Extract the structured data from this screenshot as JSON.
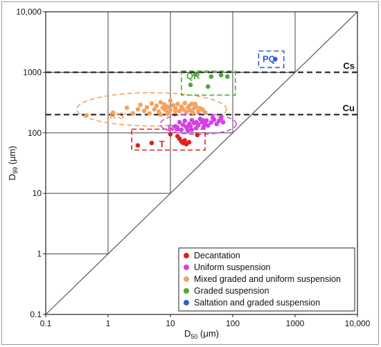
{
  "chart_data": {
    "type": "scatter",
    "xlabel": "D50 (μm)",
    "ylabel": "D99 (μm)",
    "x_scale": "log",
    "y_scale": "log",
    "xlim": [
      0.1,
      10000
    ],
    "ylim": [
      0.1,
      10000
    ],
    "x_ticks": [
      "0.1",
      "1",
      "10",
      "100",
      "1000",
      "10,000"
    ],
    "y_ticks": [
      "0.1",
      "1",
      "10",
      "100",
      "1000",
      "10,000"
    ],
    "grid": "partial",
    "legend_position": "bottom-right",
    "reference_lines": [
      {
        "label": "Cs",
        "y": 1000,
        "style": "dashed"
      },
      {
        "label": "Cu",
        "y": 200,
        "style": "dashed"
      },
      {
        "label": "",
        "type": "1:1",
        "style": "solid"
      }
    ],
    "group_labels": [
      {
        "label": "PQ",
        "color": "#2f5bd8"
      },
      {
        "label": "QR",
        "color": "#4ea83a"
      },
      {
        "label": "R'S'",
        "color": "#f4a261"
      },
      {
        "label": "RS",
        "color": "#d33fe6"
      },
      {
        "label": "T",
        "color": "#e0201c"
      }
    ],
    "series": [
      {
        "name": "Decantation",
        "color": "#e0201c",
        "points": [
          [
            3,
            62
          ],
          [
            5,
            68
          ],
          [
            10,
            95
          ],
          [
            13,
            88
          ],
          [
            14,
            80
          ],
          [
            15,
            72
          ],
          [
            16,
            68
          ],
          [
            17,
            75
          ],
          [
            18,
            65
          ],
          [
            20,
            70
          ],
          [
            27,
            92
          ]
        ]
      },
      {
        "name": "Uniform suspension",
        "color": "#d33fe6",
        "points": [
          [
            12,
            128
          ],
          [
            13,
            118
          ],
          [
            14,
            150
          ],
          [
            15,
            112
          ],
          [
            16,
            135
          ],
          [
            17,
            158
          ],
          [
            18,
            125
          ],
          [
            19,
            110
          ],
          [
            20,
            140
          ],
          [
            21,
            128
          ],
          [
            22,
            162
          ],
          [
            24,
            145
          ],
          [
            26,
            120
          ],
          [
            28,
            135
          ],
          [
            30,
            170
          ],
          [
            32,
            150
          ],
          [
            34,
            125
          ],
          [
            36,
            142
          ],
          [
            38,
            160
          ],
          [
            40,
            132
          ],
          [
            45,
            148
          ],
          [
            50,
            165
          ],
          [
            55,
            140
          ],
          [
            60,
            158
          ],
          [
            65,
            175
          ],
          [
            70,
            150
          ],
          [
            22,
            112
          ],
          [
            26,
            150
          ],
          [
            33,
            162
          ],
          [
            48,
            178
          ]
        ]
      },
      {
        "name": "Mixed graded and uniform suspension",
        "color": "#f4a261",
        "points": [
          [
            0.45,
            195
          ],
          [
            1.2,
            215
          ],
          [
            2,
            260
          ],
          [
            2.5,
            210
          ],
          [
            3,
            245
          ],
          [
            3.3,
            290
          ],
          [
            3.8,
            230
          ],
          [
            4.2,
            265
          ],
          [
            4.6,
            210
          ],
          [
            5,
            305
          ],
          [
            5.5,
            245
          ],
          [
            6,
            280
          ],
          [
            6.5,
            225
          ],
          [
            7,
            320
          ],
          [
            7.5,
            260
          ],
          [
            8,
            295
          ],
          [
            8.5,
            235
          ],
          [
            9,
            270
          ],
          [
            9.5,
            215
          ],
          [
            10,
            340
          ],
          [
            11,
            285
          ],
          [
            12,
            255
          ],
          [
            13,
            300
          ],
          [
            14,
            230
          ],
          [
            15,
            270
          ],
          [
            16,
            245
          ],
          [
            17,
            310
          ],
          [
            18,
            220
          ],
          [
            19,
            260
          ],
          [
            20,
            280
          ],
          [
            21,
            235
          ],
          [
            22,
            300
          ],
          [
            23,
            215
          ],
          [
            24,
            255
          ],
          [
            26,
            270
          ],
          [
            28,
            228
          ],
          [
            30,
            255
          ],
          [
            33,
            240
          ],
          [
            36,
            218
          ],
          [
            12,
            225
          ],
          [
            10,
            240
          ],
          [
            8,
            250
          ],
          [
            9,
            205
          ],
          [
            25,
            300
          ],
          [
            7,
            200
          ]
        ]
      },
      {
        "name": "Graded suspension",
        "color": "#4ea83a",
        "points": [
          [
            21,
            620
          ],
          [
            25,
            920
          ],
          [
            40,
            580
          ],
          [
            45,
            850
          ],
          [
            65,
            900
          ],
          [
            82,
            850
          ]
        ]
      },
      {
        "name": "Saltation and graded suspension",
        "color": "#2f5bd8",
        "points": [
          [
            480,
            1650
          ]
        ]
      }
    ]
  }
}
